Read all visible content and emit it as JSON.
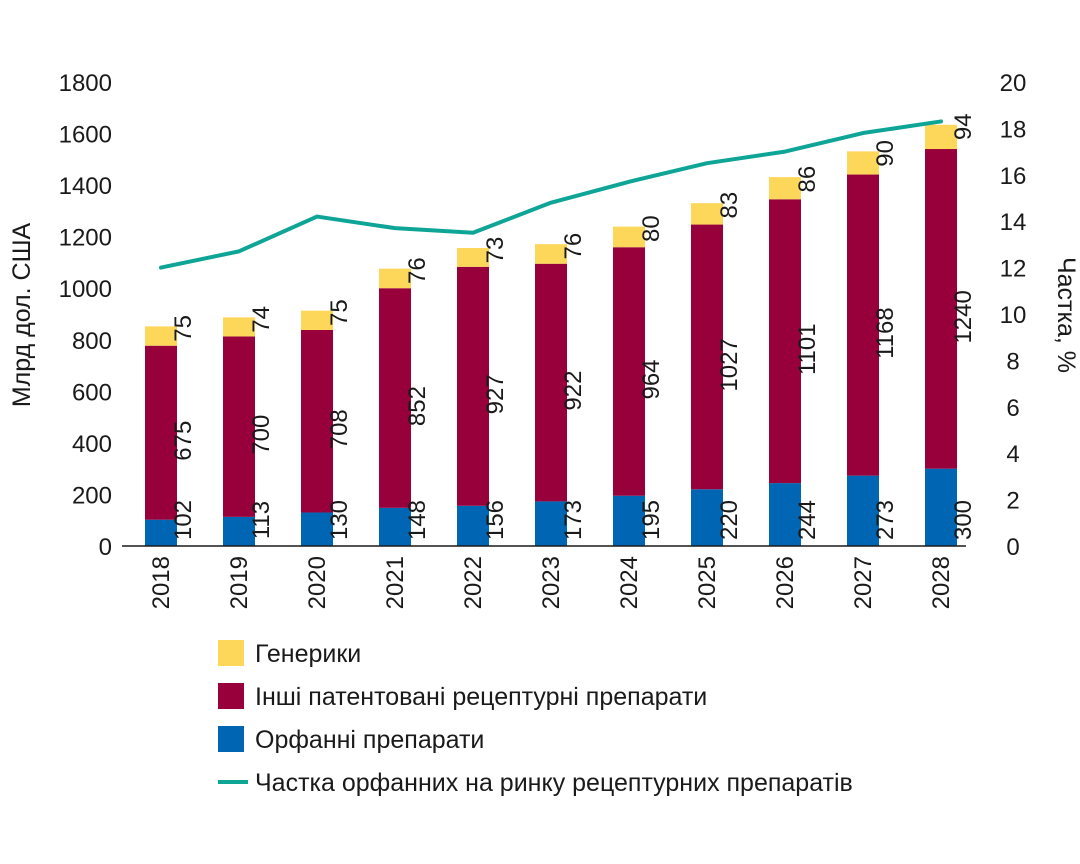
{
  "chart_data": {
    "type": "bar",
    "stacked": true,
    "categories": [
      "2018",
      "2019",
      "2020",
      "2021",
      "2022",
      "2023",
      "2024",
      "2025",
      "2026",
      "2027",
      "2028"
    ],
    "series": [
      {
        "name": "Орфанні препарати",
        "color": "#0066b3",
        "values": [
          102,
          113,
          130,
          148,
          156,
          173,
          195,
          220,
          244,
          273,
          300
        ]
      },
      {
        "name": "Інші патентовані рецептурні препарати",
        "color": "#98003c",
        "values": [
          675,
          700,
          708,
          852,
          927,
          922,
          964,
          1027,
          1101,
          1168,
          1240
        ]
      },
      {
        "name": "Генерики",
        "color": "#fdd75a",
        "values": [
          75,
          74,
          75,
          76,
          73,
          76,
          80,
          83,
          86,
          90,
          94
        ]
      }
    ],
    "line_series": {
      "name": "Частка орфанних на ринку рецептурних препаратів",
      "color": "#0fa596",
      "axis": "right",
      "values": [
        12.0,
        12.7,
        14.2,
        13.7,
        13.5,
        14.8,
        15.7,
        16.5,
        17.0,
        17.8,
        18.3
      ]
    },
    "ylabel": "Млрд дол. США",
    "ylabel_right": "Частка, %",
    "ylim": [
      0,
      1800
    ],
    "ylim_right": [
      0,
      20
    ],
    "yticks": [
      "0",
      "200",
      "400",
      "600",
      "800",
      "1000",
      "1200",
      "1400",
      "1600",
      "1800"
    ],
    "yticks_right": [
      "0",
      "2",
      "4",
      "6",
      "8",
      "10",
      "12",
      "14",
      "16",
      "18",
      "20"
    ],
    "legend_order": [
      "Генерики",
      "Інші патентовані рецептурні препарати",
      "Орфанні препарати",
      "Частка орфанних на ринку рецептурних препаратів"
    ],
    "legend_position": "bottom-center",
    "grid": false
  }
}
